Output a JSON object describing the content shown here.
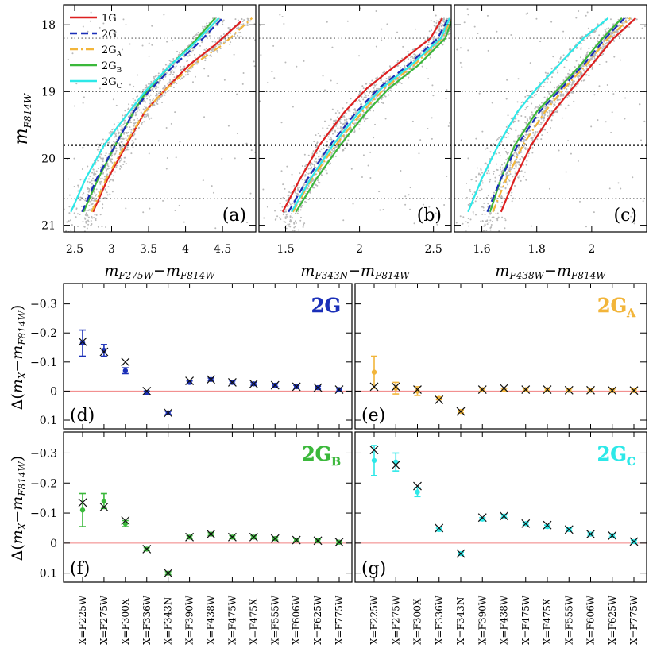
{
  "cmd_panels": [
    {
      "label": "(a)",
      "xlim": [
        2.35,
        4.95
      ],
      "xticks": [
        2.5,
        3,
        3.5,
        4,
        4.5
      ],
      "xtick_labels": [
        "2.5",
        "3",
        "3.5",
        "4",
        "4.5"
      ],
      "xlabel": {
        "m1": "m",
        "s1": "F275W",
        "dash": "−",
        "m2": "m",
        "s2": "F814W"
      },
      "curves": {
        "1G": [
          [
            2.75,
            20.8
          ],
          [
            2.95,
            20.3
          ],
          [
            3.2,
            19.8
          ],
          [
            3.45,
            19.3
          ],
          [
            3.7,
            19.0
          ],
          [
            4.05,
            18.6
          ],
          [
            4.4,
            18.3
          ],
          [
            4.75,
            17.95
          ]
        ],
        "2G": [
          [
            2.6,
            20.8
          ],
          [
            2.8,
            20.3
          ],
          [
            3.05,
            19.8
          ],
          [
            3.3,
            19.3
          ],
          [
            3.5,
            19.0
          ],
          [
            3.85,
            18.6
          ],
          [
            4.15,
            18.3
          ],
          [
            4.5,
            17.9
          ]
        ],
        "2GA": [
          [
            2.73,
            20.8
          ],
          [
            2.93,
            20.3
          ],
          [
            3.18,
            19.8
          ],
          [
            3.45,
            19.3
          ],
          [
            3.7,
            19.0
          ],
          [
            4.1,
            18.6
          ],
          [
            4.5,
            18.3
          ],
          [
            4.9,
            17.9
          ]
        ],
        "2GB": [
          [
            2.62,
            20.8
          ],
          [
            2.82,
            20.3
          ],
          [
            3.05,
            19.8
          ],
          [
            3.3,
            19.3
          ],
          [
            3.47,
            19.0
          ],
          [
            3.8,
            18.6
          ],
          [
            4.08,
            18.3
          ],
          [
            4.4,
            17.9
          ]
        ],
        "2GC": [
          [
            2.45,
            20.8
          ],
          [
            2.65,
            20.3
          ],
          [
            2.9,
            19.8
          ],
          [
            3.1,
            19.5
          ],
          [
            3.45,
            19.0
          ],
          [
            3.8,
            18.6
          ],
          [
            4.1,
            18.3
          ],
          [
            4.45,
            17.9
          ]
        ]
      }
    },
    {
      "label": "(b)",
      "xlim": [
        1.32,
        2.62
      ],
      "xticks": [
        1.5,
        2,
        2.5
      ],
      "xtick_labels": [
        "1.5",
        "2",
        "2.5"
      ],
      "xlabel": {
        "m1": "m",
        "s1": "F343N",
        "dash": "−",
        "m2": "m",
        "s2": "F814W"
      },
      "curves": {
        "1G": [
          [
            1.48,
            20.8
          ],
          [
            1.6,
            20.3
          ],
          [
            1.73,
            19.8
          ],
          [
            1.9,
            19.3
          ],
          [
            2.05,
            18.95
          ],
          [
            2.25,
            18.6
          ],
          [
            2.48,
            18.2
          ],
          [
            2.56,
            17.9
          ]
        ],
        "2G": [
          [
            1.52,
            20.8
          ],
          [
            1.65,
            20.3
          ],
          [
            1.8,
            19.8
          ],
          [
            1.98,
            19.3
          ],
          [
            2.13,
            18.95
          ],
          [
            2.33,
            18.6
          ],
          [
            2.53,
            18.2
          ],
          [
            2.6,
            17.9
          ]
        ],
        "2GA": [
          [
            1.55,
            20.8
          ],
          [
            1.68,
            20.3
          ],
          [
            1.84,
            19.8
          ],
          [
            2.02,
            19.3
          ],
          [
            2.17,
            18.95
          ],
          [
            2.37,
            18.6
          ],
          [
            2.56,
            18.2
          ],
          [
            2.62,
            17.9
          ]
        ],
        "2GB": [
          [
            1.57,
            20.8
          ],
          [
            1.71,
            20.3
          ],
          [
            1.87,
            19.8
          ],
          [
            2.05,
            19.3
          ],
          [
            2.2,
            18.95
          ],
          [
            2.4,
            18.6
          ],
          [
            2.58,
            18.2
          ],
          [
            2.63,
            17.9
          ]
        ],
        "2GC": [
          [
            1.54,
            20.8
          ],
          [
            1.67,
            20.3
          ],
          [
            1.82,
            19.8
          ],
          [
            2.0,
            19.3
          ],
          [
            2.15,
            18.95
          ],
          [
            2.35,
            18.6
          ],
          [
            2.55,
            18.2
          ],
          [
            2.61,
            17.9
          ]
        ]
      }
    },
    {
      "label": "(c)",
      "xlim": [
        1.5,
        2.2
      ],
      "xticks": [
        1.6,
        1.8,
        2
      ],
      "xtick_labels": [
        "1.6",
        "1.8",
        "2"
      ],
      "xlabel": {
        "m1": "m",
        "s1": "F438W",
        "dash": "−",
        "m2": "m",
        "s2": "F814W"
      },
      "curves": {
        "1G": [
          [
            1.67,
            20.8
          ],
          [
            1.72,
            20.3
          ],
          [
            1.78,
            19.8
          ],
          [
            1.86,
            19.3
          ],
          [
            1.93,
            18.95
          ],
          [
            2.0,
            18.6
          ],
          [
            2.08,
            18.2
          ],
          [
            2.16,
            17.9
          ]
        ],
        "2G": [
          [
            1.62,
            20.8
          ],
          [
            1.67,
            20.3
          ],
          [
            1.73,
            19.8
          ],
          [
            1.81,
            19.3
          ],
          [
            1.89,
            18.95
          ],
          [
            1.97,
            18.6
          ],
          [
            2.05,
            18.2
          ],
          [
            2.12,
            17.9
          ]
        ],
        "2GA": [
          [
            1.64,
            20.8
          ],
          [
            1.69,
            20.3
          ],
          [
            1.75,
            19.8
          ],
          [
            1.83,
            19.3
          ],
          [
            1.9,
            18.95
          ],
          [
            1.98,
            18.6
          ],
          [
            2.06,
            18.2
          ],
          [
            2.14,
            17.9
          ]
        ],
        "2GB": [
          [
            1.63,
            20.8
          ],
          [
            1.67,
            20.3
          ],
          [
            1.72,
            19.8
          ],
          [
            1.8,
            19.3
          ],
          [
            1.88,
            18.95
          ],
          [
            1.96,
            18.6
          ],
          [
            2.04,
            18.2
          ],
          [
            2.11,
            17.9
          ]
        ],
        "2GC": [
          [
            1.55,
            20.8
          ],
          [
            1.6,
            20.3
          ],
          [
            1.66,
            19.8
          ],
          [
            1.73,
            19.3
          ],
          [
            1.8,
            18.95
          ],
          [
            1.88,
            18.6
          ],
          [
            1.97,
            18.2
          ],
          [
            2.06,
            17.9
          ]
        ]
      }
    }
  ],
  "cmd_common": {
    "ylim": [
      21.1,
      17.7
    ],
    "yticks": [
      18,
      19,
      20,
      21
    ],
    "ytick_labels": [
      "18",
      "19",
      "20",
      "21"
    ],
    "ylabel": {
      "m": "m",
      "s": "F814W"
    },
    "hlines_thin": [
      18.2,
      19.0,
      20.6
    ],
    "hline_thick": 19.8
  },
  "legend": [
    {
      "key": "1G",
      "name": "1G",
      "sub": "",
      "color": "#dd2020",
      "dash": ""
    },
    {
      "key": "2G",
      "name": "2G",
      "sub": "",
      "color": "#1a2fb8",
      "dash": "9,5"
    },
    {
      "key": "2GA",
      "name": "2G",
      "sub": "A",
      "color": "#f2b53a",
      "dash": "10,4,2,4"
    },
    {
      "key": "2GB",
      "name": "2G",
      "sub": "B",
      "color": "#3bb83b",
      "dash": ""
    },
    {
      "key": "2GC",
      "name": "2G",
      "sub": "C",
      "color": "#2de8e8",
      "dash": ""
    }
  ],
  "delta_common": {
    "filters": [
      "X=F225W",
      "X=F275W",
      "X=F300X",
      "X=F336W",
      "X=F343N",
      "X=F390W",
      "X=F438W",
      "X=F475W",
      "X=F475X",
      "X=F555W",
      "X=F606W",
      "X=F625W",
      "X=F775W"
    ],
    "ylim": [
      0.13,
      -0.37
    ],
    "yticks": [
      0.1,
      0,
      -0.1,
      -0.2,
      -0.3
    ],
    "ytick_labels": [
      "0.1",
      "0",
      "−0.1",
      "−0.2",
      "−0.3"
    ],
    "ylabel": {
      "pre": "Δ(",
      "m1": "m",
      "s1": "X",
      "dash": "−",
      "m2": "m",
      "s2": "F814W",
      "post": ")"
    },
    "zero_color": "#f08080"
  },
  "delta_panels": [
    {
      "label": "(d)",
      "name": "2G",
      "sub": "",
      "color": "#1a2fb8",
      "obs": [
        -0.165,
        -0.14,
        -0.07,
        0.005,
        0.075,
        -0.03,
        -0.04,
        -0.03,
        -0.025,
        -0.02,
        -0.015,
        -0.012,
        -0.005
      ],
      "err": [
        0.045,
        0.02,
        0.01,
        0.005,
        0.005,
        0.005,
        0.005,
        0.005,
        0.005,
        0.005,
        0.005,
        0.005,
        0.005
      ],
      "model": [
        -0.17,
        -0.135,
        -0.1,
        0.0,
        0.075,
        -0.035,
        -0.04,
        -0.03,
        -0.025,
        -0.02,
        -0.015,
        -0.012,
        -0.005
      ]
    },
    {
      "label": "(e)",
      "name": "2G",
      "sub": "A",
      "color": "#f2b53a",
      "obs": [
        -0.065,
        -0.01,
        0.0,
        0.025,
        0.07,
        -0.005,
        -0.005,
        -0.005,
        -0.005,
        -0.003,
        -0.003,
        -0.002,
        -0.002
      ],
      "err": [
        0.055,
        0.02,
        0.015,
        0.005,
        0.005,
        0.005,
        0.005,
        0.005,
        0.005,
        0.005,
        0.005,
        0.005,
        0.005
      ],
      "model": [
        -0.015,
        -0.015,
        -0.005,
        0.03,
        0.07,
        -0.005,
        -0.01,
        -0.005,
        -0.005,
        -0.003,
        -0.003,
        -0.002,
        -0.002
      ]
    },
    {
      "label": "(f)",
      "name": "2G",
      "sub": "B",
      "color": "#3bb83b",
      "obs": [
        -0.11,
        -0.14,
        -0.065,
        0.02,
        0.1,
        -0.02,
        -0.03,
        -0.02,
        -0.02,
        -0.015,
        -0.01,
        -0.008,
        -0.003
      ],
      "err": [
        0.055,
        0.025,
        0.01,
        0.005,
        0.005,
        0.005,
        0.005,
        0.005,
        0.005,
        0.005,
        0.005,
        0.005,
        0.005
      ],
      "model": [
        -0.135,
        -0.12,
        -0.075,
        0.02,
        0.1,
        -0.02,
        -0.03,
        -0.02,
        -0.02,
        -0.015,
        -0.01,
        -0.008,
        -0.003
      ]
    },
    {
      "label": "(g)",
      "name": "2G",
      "sub": "C",
      "color": "#2de8e8",
      "obs": [
        -0.275,
        -0.27,
        -0.17,
        -0.045,
        0.035,
        -0.08,
        -0.09,
        -0.065,
        -0.055,
        -0.045,
        -0.03,
        -0.025,
        -0.005
      ],
      "err": [
        0.05,
        0.03,
        0.015,
        0.005,
        0.005,
        0.005,
        0.005,
        0.005,
        0.005,
        0.005,
        0.005,
        0.005,
        0.005
      ],
      "model": [
        -0.31,
        -0.26,
        -0.19,
        -0.05,
        0.035,
        -0.085,
        -0.09,
        -0.065,
        -0.06,
        -0.045,
        -0.03,
        -0.025,
        -0.005
      ]
    }
  ]
}
